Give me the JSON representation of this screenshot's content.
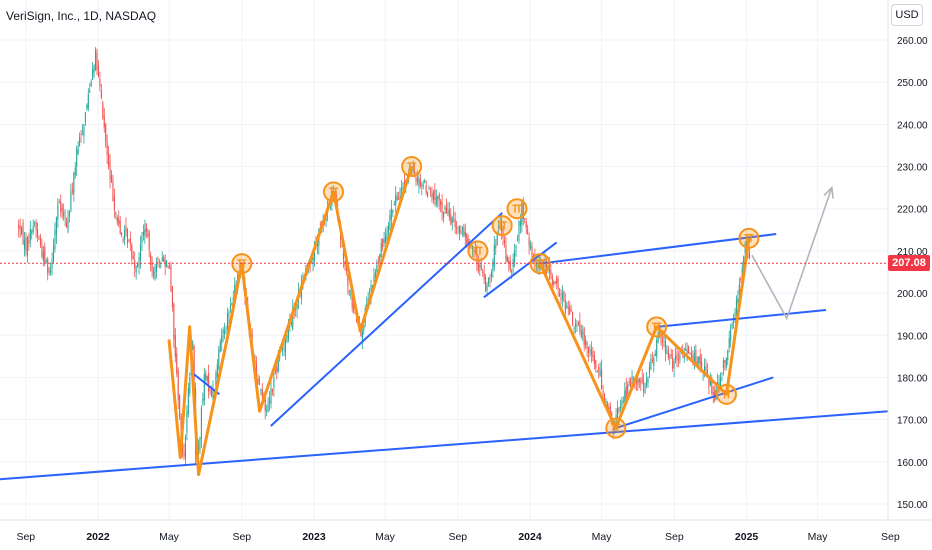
{
  "header": {
    "title": "VeriSign, Inc., 1D, NASDAQ",
    "currency": "USD"
  },
  "colors": {
    "up": "#26a69a",
    "down": "#ef5350",
    "trendline": "#2962ff",
    "pattern": "#f7931a",
    "projection": "#b2b5be",
    "last_price": "#f23645"
  },
  "last_price_label": "207.08",
  "chart_data": {
    "type": "candlestick",
    "symbol": "VeriSign, Inc.",
    "interval": "1D",
    "exchange": "NASDAQ",
    "ylim": [
      150,
      260
    ],
    "y_ticks": [
      "260.00",
      "250.00",
      "240.00",
      "230.00",
      "220.00",
      "210.00",
      "200.00",
      "190.00",
      "180.00",
      "170.00",
      "160.00",
      "150.00"
    ],
    "x_ticks": [
      "Sep",
      "2022",
      "May",
      "Sep",
      "2023",
      "May",
      "Sep",
      "2024",
      "May",
      "Sep",
      "2025",
      "May",
      "Sep"
    ],
    "last_price": 207.08,
    "price_path": [
      [
        "2021-08-20",
        216
      ],
      [
        "2021-09-01",
        211
      ],
      [
        "2021-09-15",
        217
      ],
      [
        "2021-09-30",
        209
      ],
      [
        "2021-10-12",
        205
      ],
      [
        "2021-10-25",
        221
      ],
      [
        "2021-11-10",
        216
      ],
      [
        "2021-11-25",
        232
      ],
      [
        "2021-12-10",
        242
      ],
      [
        "2021-12-27",
        257
      ],
      [
        "2022-01-07",
        245
      ],
      [
        "2022-01-20",
        228
      ],
      [
        "2022-02-07",
        214
      ],
      [
        "2022-02-20",
        213
      ],
      [
        "2022-03-07",
        206
      ],
      [
        "2022-03-21",
        216
      ],
      [
        "2022-04-04",
        205
      ],
      [
        "2022-04-18",
        208
      ],
      [
        "2022-05-02",
        207
      ],
      [
        "2022-05-10",
        188
      ],
      [
        "2022-05-25",
        160
      ],
      [
        "2022-06-10",
        190
      ],
      [
        "2022-06-16",
        157
      ],
      [
        "2022-06-30",
        180
      ],
      [
        "2022-07-15",
        176
      ],
      [
        "2022-07-28",
        190
      ],
      [
        "2022-08-12",
        196
      ],
      [
        "2022-08-31",
        207
      ],
      [
        "2022-09-20",
        185
      ],
      [
        "2022-10-12",
        172
      ],
      [
        "2022-10-31",
        183
      ],
      [
        "2022-11-30",
        197
      ],
      [
        "2023-01-10",
        214
      ],
      [
        "2023-02-03",
        224
      ],
      [
        "2023-03-01",
        200
      ],
      [
        "2023-03-22",
        191
      ],
      [
        "2023-04-15",
        205
      ],
      [
        "2023-05-10",
        219
      ],
      [
        "2023-06-12",
        229
      ],
      [
        "2023-07-10",
        225
      ],
      [
        "2023-08-01",
        221
      ],
      [
        "2023-08-30",
        216
      ],
      [
        "2023-09-28",
        210
      ],
      [
        "2023-10-20",
        201
      ],
      [
        "2023-11-10",
        216
      ],
      [
        "2023-11-30",
        204
      ],
      [
        "2023-12-18",
        220
      ],
      [
        "2024-01-05",
        208
      ],
      [
        "2024-01-25",
        207
      ],
      [
        "2024-02-20",
        200
      ],
      [
        "2024-03-15",
        193
      ],
      [
        "2024-04-10",
        187
      ],
      [
        "2024-04-29",
        180
      ],
      [
        "2024-05-20",
        168
      ],
      [
        "2024-06-05",
        175
      ],
      [
        "2024-06-25",
        180
      ],
      [
        "2024-07-15",
        178
      ],
      [
        "2024-08-06",
        191
      ],
      [
        "2024-08-30",
        183
      ],
      [
        "2024-09-25",
        187
      ],
      [
        "2024-10-20",
        182
      ],
      [
        "2024-11-08",
        176
      ],
      [
        "2024-11-28",
        186
      ],
      [
        "2024-12-13",
        196
      ],
      [
        "2024-12-31",
        213
      ],
      [
        "2025-01-08",
        207
      ]
    ],
    "patterns": [
      {
        "name": "zigzag",
        "points": [
          [
            "2022-05-01",
            189
          ],
          [
            "2022-05-20",
            161
          ],
          [
            "2022-06-05",
            192
          ],
          [
            "2022-06-20",
            157
          ],
          [
            "2022-08-10",
            191
          ],
          [
            "2022-09-01",
            207
          ],
          [
            "2022-10-01",
            172
          ],
          [
            "2023-02-03",
            224
          ],
          [
            "2023-03-20",
            191
          ],
          [
            "2023-06-15",
            230
          ]
        ]
      },
      {
        "name": "zigzag-2024",
        "points": [
          [
            "2024-01-18",
            207
          ],
          [
            "2024-05-25",
            168
          ],
          [
            "2024-08-02",
            192
          ],
          [
            "2024-11-28",
            176
          ],
          [
            "2025-01-05",
            213
          ]
        ]
      }
    ],
    "markers": [
      [
        "2022-09-01",
        207
      ],
      [
        "2023-02-03",
        224
      ],
      [
        "2023-06-15",
        230
      ],
      [
        "2023-10-05",
        210
      ],
      [
        "2023-11-15",
        216
      ],
      [
        "2023-12-10",
        220
      ],
      [
        "2024-01-18",
        207
      ],
      [
        "2024-05-25",
        168
      ],
      [
        "2024-08-02",
        192
      ],
      [
        "2024-11-28",
        176
      ],
      [
        "2025-01-05",
        213
      ]
    ],
    "trendlines": [
      [
        [
          "2021-06-15",
          155.5
        ],
        [
          "2025-11-30",
          173
        ]
      ],
      [
        [
          "2022-06-10",
          181
        ],
        [
          "2022-07-25",
          176
        ]
      ],
      [
        [
          "2022-10-20",
          168.5
        ],
        [
          "2023-11-15",
          219
        ]
      ],
      [
        [
          "2023-10-15",
          199
        ],
        [
          "2024-02-15",
          212
        ]
      ],
      [
        [
          "2024-01-18",
          207
        ],
        [
          "2025-02-20",
          214
        ]
      ],
      [
        [
          "2024-08-02",
          192
        ],
        [
          "2025-05-15",
          196
        ]
      ],
      [
        [
          "2024-05-25",
          168
        ],
        [
          "2025-02-15",
          180
        ]
      ]
    ],
    "projection": [
      [
        "2025-01-10",
        209
      ],
      [
        "2025-03-10",
        194
      ],
      [
        "2025-05-25",
        225
      ]
    ]
  }
}
